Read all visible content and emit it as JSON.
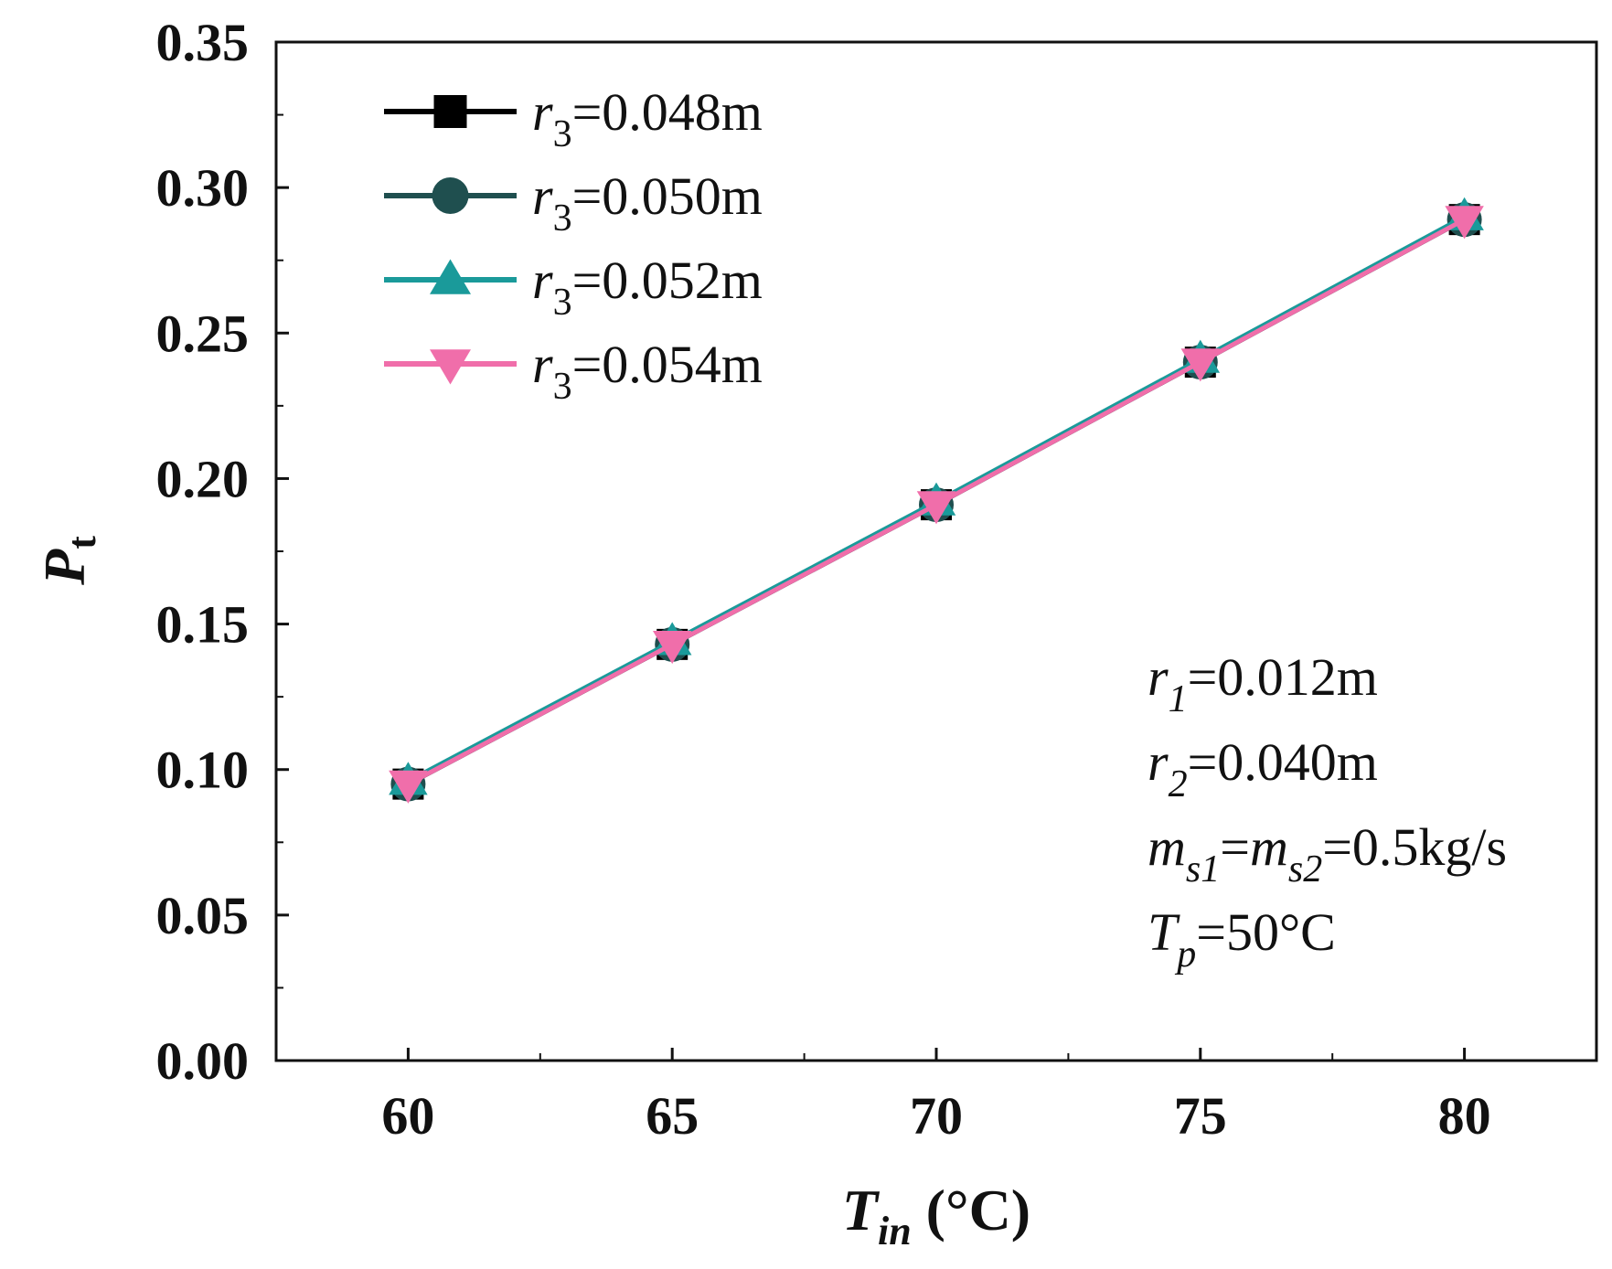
{
  "chart_data": {
    "type": "line",
    "title": "",
    "xlabel": {
      "symbol": "T",
      "subscript": "in",
      "unit": " (°C)"
    },
    "ylabel": {
      "symbol": "P",
      "subscript": "t"
    },
    "xlim": [
      57.5,
      82.5
    ],
    "ylim": [
      0.0,
      0.35
    ],
    "x": [
      60,
      65,
      70,
      75,
      80
    ],
    "xticks": [
      "60",
      "65",
      "70",
      "75",
      "80"
    ],
    "yticks": [
      "0.00",
      "0.05",
      "0.10",
      "0.15",
      "0.20",
      "0.25",
      "0.30",
      "0.35"
    ],
    "legend_position": "top-left",
    "series": [
      {
        "name": "r3=0.048m",
        "symbol": "r",
        "subscript": "3",
        "value_text": "=0.048m",
        "marker": "square",
        "color": "#000000",
        "values": [
          0.095,
          0.143,
          0.191,
          0.24,
          0.289
        ]
      },
      {
        "name": "r3=0.050m",
        "symbol": "r",
        "subscript": "3",
        "value_text": "=0.050m",
        "marker": "circle",
        "color": "#1f4f4f",
        "values": [
          0.095,
          0.143,
          0.191,
          0.24,
          0.289
        ]
      },
      {
        "name": "r3=0.052m",
        "symbol": "r",
        "subscript": "3",
        "value_text": "=0.052m",
        "marker": "triangle-up",
        "color": "#1a9a9a",
        "values": [
          0.096,
          0.144,
          0.192,
          0.241,
          0.29
        ]
      },
      {
        "name": "r3=0.054m",
        "symbol": "r",
        "subscript": "3",
        "value_text": "=0.054m",
        "marker": "triangle-down",
        "color": "#f06eaa",
        "values": [
          0.095,
          0.143,
          0.191,
          0.24,
          0.289
        ]
      }
    ],
    "annotations": [
      {
        "parts": [
          {
            "t": "r",
            "style": "italic"
          },
          {
            "t": "1",
            "style": "sub"
          },
          {
            "t": "=0.012m",
            "style": "normal"
          }
        ]
      },
      {
        "parts": [
          {
            "t": "r",
            "style": "italic"
          },
          {
            "t": "2",
            "style": "sub"
          },
          {
            "t": "=0.040m",
            "style": "normal"
          }
        ]
      },
      {
        "parts": [
          {
            "t": "m",
            "style": "italic"
          },
          {
            "t": "s1",
            "style": "sub"
          },
          {
            "t": "=",
            "style": "normal"
          },
          {
            "t": "m",
            "style": "italic"
          },
          {
            "t": "s2",
            "style": "sub"
          },
          {
            "t": "=0.5kg/s",
            "style": "normal"
          }
        ]
      },
      {
        "parts": [
          {
            "t": "T",
            "style": "italic"
          },
          {
            "t": "p",
            "style": "sub"
          },
          {
            "t": "=50°C",
            "style": "normal"
          }
        ]
      }
    ]
  }
}
